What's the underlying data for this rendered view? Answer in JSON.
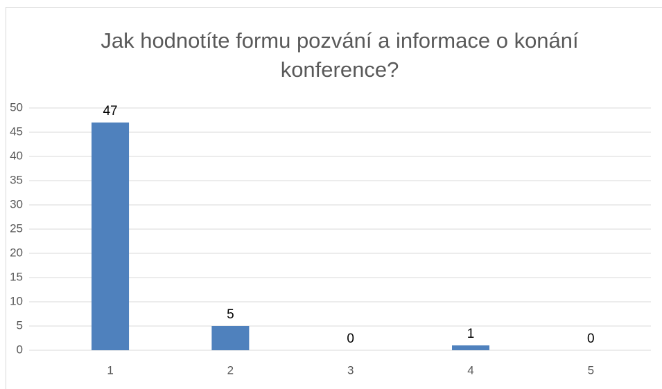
{
  "chart_data": {
    "type": "bar",
    "title": "Jak hodnotíte formu pozvání a informace o konání konference?",
    "categories": [
      "1",
      "2",
      "3",
      "4",
      "5"
    ],
    "values": [
      47,
      5,
      0,
      1,
      0
    ],
    "color": "#4f81bd",
    "ylim": [
      0,
      50
    ],
    "yticks": [
      0,
      5,
      10,
      15,
      20,
      25,
      30,
      35,
      40,
      45,
      50
    ],
    "grid": true
  }
}
